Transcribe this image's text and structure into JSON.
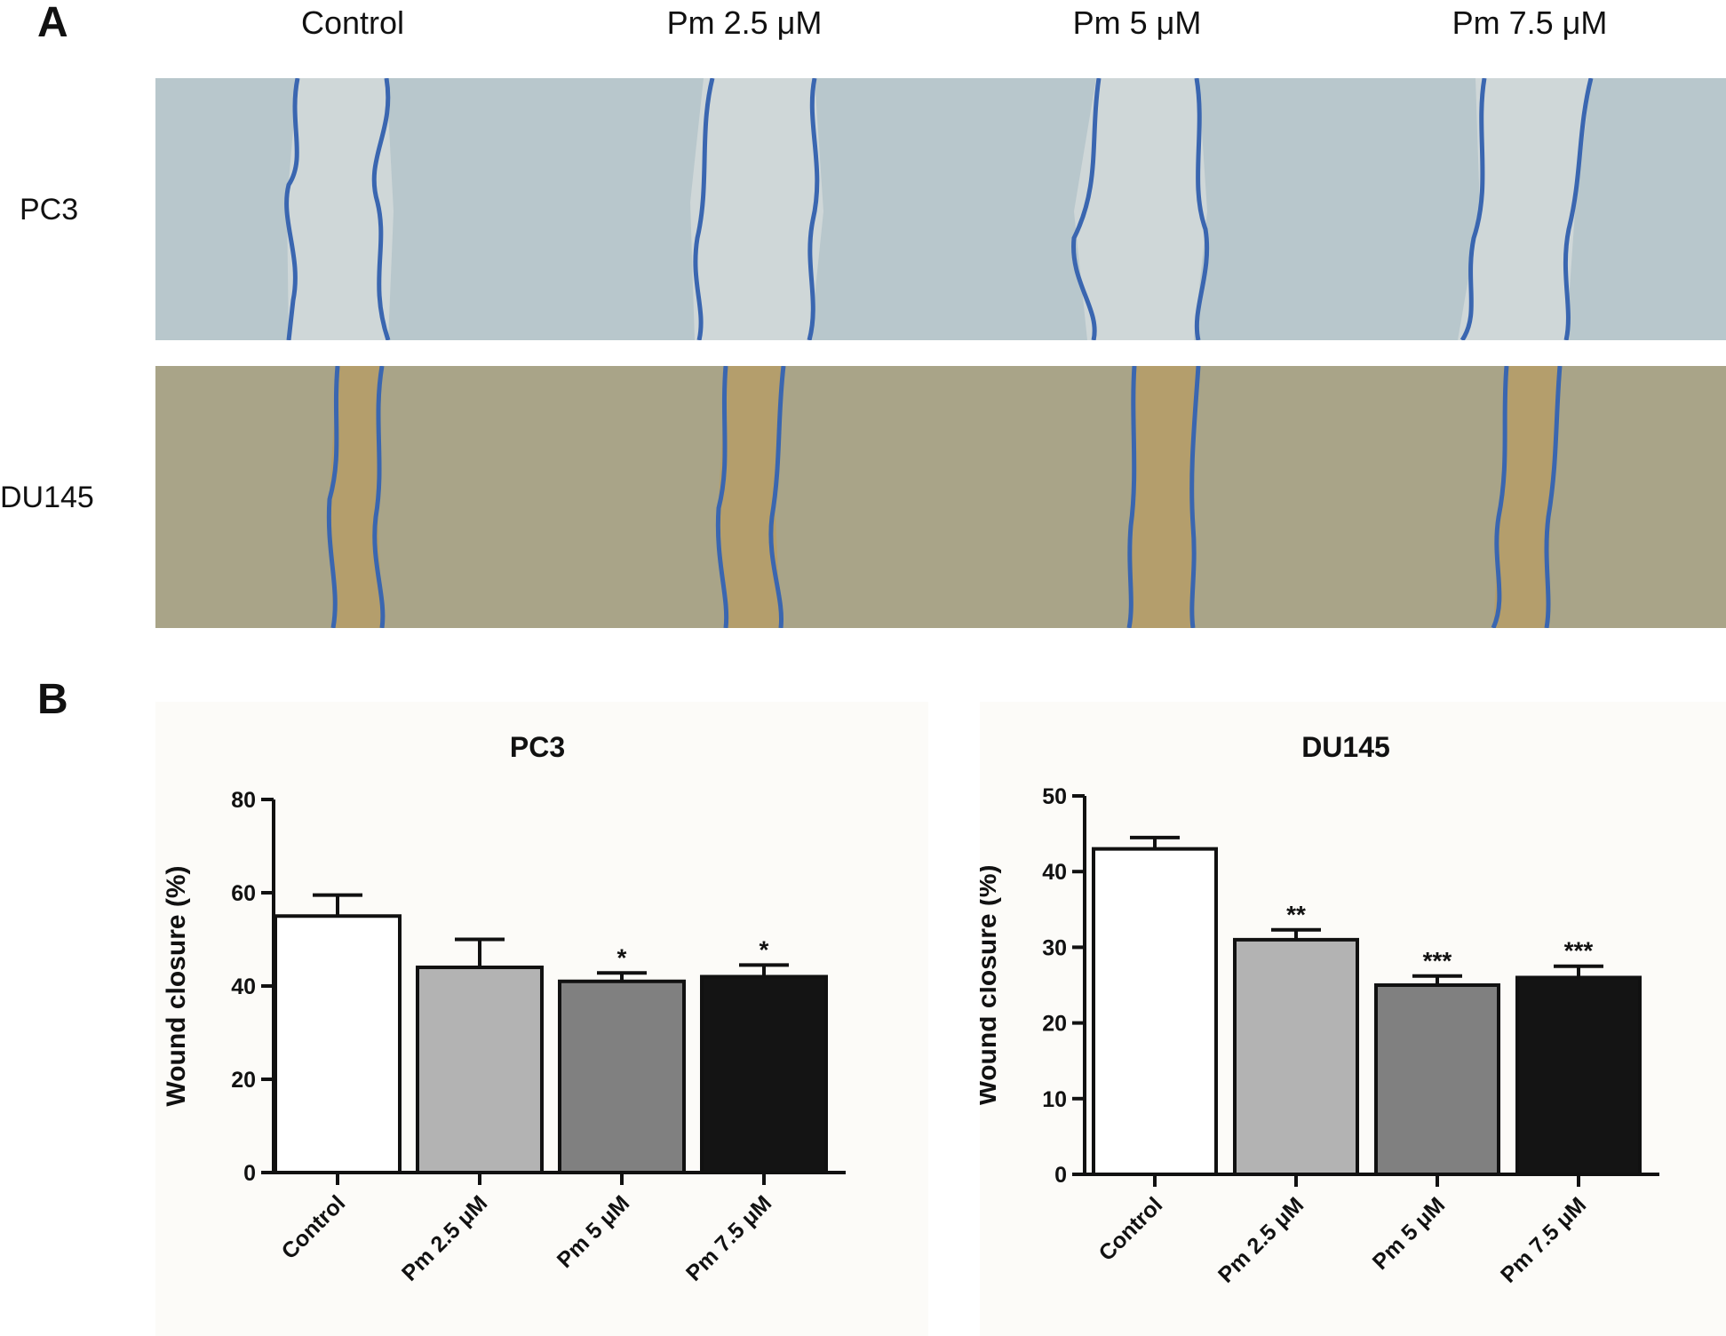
{
  "panel_a": {
    "letter": "A",
    "column_labels": [
      "Control",
      "Pm 2.5 μM",
      "Pm 5 μM",
      "Pm 7.5 μM"
    ],
    "row_labels": [
      "PC3",
      "DU145"
    ],
    "colors": {
      "wound_outline": "#3a66b0",
      "pc3_field": "#b8c7cc",
      "pc3_gap": "#cfd7d8",
      "du145_field": "#a9a488",
      "du145_gap": "#b49e6c"
    }
  },
  "panel_b": {
    "letter": "B"
  },
  "chart_data": [
    {
      "type": "bar",
      "title": "PC3",
      "xlabel": "",
      "ylabel": "Wound closure (%)",
      "ylim": [
        0,
        80
      ],
      "yticks": [
        0,
        20,
        40,
        60,
        80
      ],
      "categories": [
        "Control",
        "Pm 2.5 μM",
        "Pm 5 μM",
        "Pm 7.5 μM"
      ],
      "values": [
        55,
        44,
        41,
        42
      ],
      "errors": [
        4.5,
        6,
        1.8,
        2.5
      ],
      "annotations": [
        "",
        "",
        "*",
        "*"
      ],
      "bar_colors": [
        "#ffffff",
        "#b3b3b3",
        "#808080",
        "#141414"
      ],
      "grid": false,
      "legend": "none"
    },
    {
      "type": "bar",
      "title": "DU145",
      "xlabel": "",
      "ylabel": "Wound closure (%)",
      "ylim": [
        0,
        50
      ],
      "yticks": [
        0,
        10,
        20,
        30,
        40,
        50
      ],
      "categories": [
        "Control",
        "Pm 2.5 μM",
        "Pm 5 μM",
        "Pm 7.5 μM"
      ],
      "values": [
        43,
        31,
        25,
        26
      ],
      "errors": [
        1.5,
        1.3,
        1.2,
        1.5
      ],
      "annotations": [
        "",
        "**",
        "***",
        "***"
      ],
      "bar_colors": [
        "#ffffff",
        "#b3b3b3",
        "#808080",
        "#141414"
      ],
      "grid": false,
      "legend": "none"
    }
  ]
}
